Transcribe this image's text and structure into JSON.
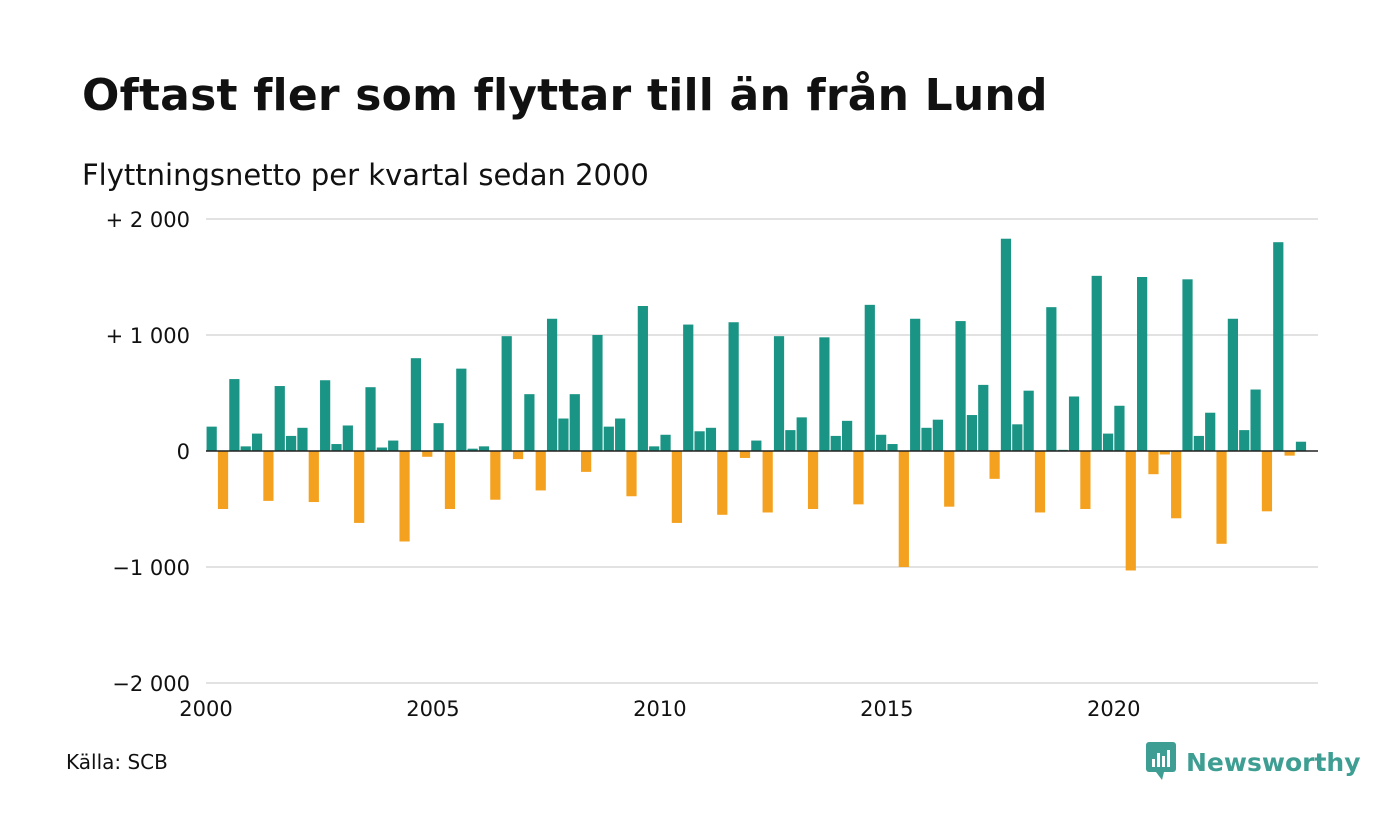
{
  "title": "Oftast fler som flyttar till än från Lund",
  "subtitle": "Flyttningsnetto per kvartal sedan 2000",
  "source": "Källa: SCB",
  "brand": {
    "name": "Newsworthy",
    "icon": "newsworthy-logo-icon"
  },
  "colors": {
    "positive": "#1a9485",
    "negative": "#f4a11f",
    "grid": "#e2e2e2",
    "zero": "#222222"
  },
  "chart_data": {
    "type": "bar",
    "xlim": [
      2000,
      2024.5
    ],
    "ylim": [
      -2000,
      2000
    ],
    "yticks": [
      {
        "value": 2000,
        "label": "+ 2 000"
      },
      {
        "value": 1000,
        "label": "+ 1 000"
      },
      {
        "value": 0,
        "label": "0"
      },
      {
        "value": -1000,
        "label": "−1 000"
      },
      {
        "value": -2000,
        "label": "−2 000"
      }
    ],
    "xticks": [
      {
        "value": 2000,
        "label": "2000"
      },
      {
        "value": 2005,
        "label": "2005"
      },
      {
        "value": 2010,
        "label": "2010"
      },
      {
        "value": 2015,
        "label": "2015"
      },
      {
        "value": 2020,
        "label": "2020"
      }
    ],
    "series": [
      {
        "start_year": 2000,
        "periods_per_year": 4,
        "values": [
          210,
          -500,
          620,
          40,
          150,
          -430,
          560,
          130,
          200,
          -440,
          610,
          60,
          220,
          -620,
          550,
          30,
          90,
          -780,
          800,
          -50,
          240,
          -500,
          710,
          20,
          40,
          -420,
          990,
          -70,
          490,
          -340,
          1140,
          280,
          490,
          -180,
          1000,
          210,
          280,
          -390,
          1250,
          40,
          140,
          -620,
          1090,
          170,
          200,
          -550,
          1110,
          -60,
          90,
          -530,
          990,
          180,
          290,
          -500,
          980,
          130,
          260,
          -460,
          1260,
          140,
          60,
          -1000,
          1140,
          200,
          270,
          -480,
          1120,
          310,
          570,
          -240,
          1830,
          230,
          520,
          -530,
          1240,
          10,
          470,
          -500,
          1510,
          150,
          390,
          -1030,
          1500,
          -200,
          -30,
          -580,
          1480,
          130,
          330,
          -800,
          1140,
          180,
          530,
          -520,
          1800,
          -40,
          80
        ]
      }
    ]
  }
}
